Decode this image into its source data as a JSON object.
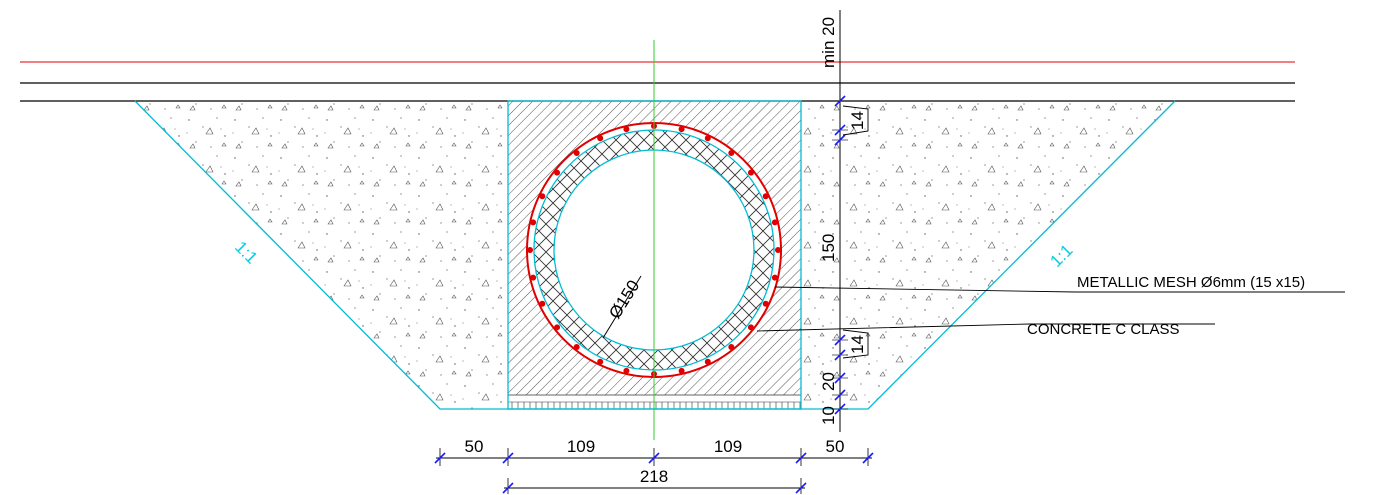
{
  "labels": {
    "metallic_mesh": "METALLIC MESH  Ø6mm (15 x15)",
    "concrete": "CONCRETE C CLASS",
    "pipe_diameter": "Ø150",
    "slope_left": "1:1",
    "slope_right": "1:1"
  },
  "dimensions": {
    "bottom": {
      "left_side": "50",
      "left_half": "109",
      "right_half": "109",
      "right_side": "50",
      "total": "218"
    },
    "vertical": {
      "min_cover": "min 20",
      "top_encasement": "14",
      "pipe": "150",
      "bottom_encasement": "14",
      "bedding": "20",
      "base": "10"
    }
  },
  "colors": {
    "trench_outline": "#00bcd4",
    "reinforcement": "#e00000",
    "axis": "#33cc33",
    "surface_line": "#e00000",
    "dimension_tick": "#1a1aff"
  }
}
